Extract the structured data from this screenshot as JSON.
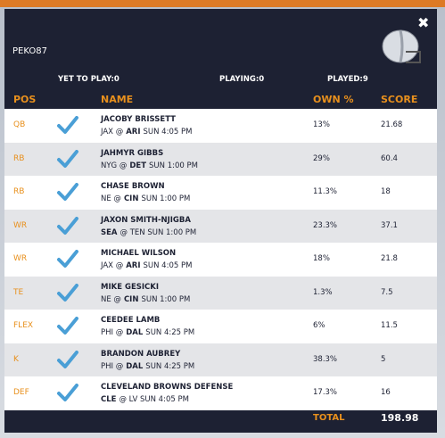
{
  "header": {
    "username": "PEKO87"
  },
  "status": [
    "YET TO PLAY:0",
    "PLAYING:0",
    "PLAYED:9"
  ],
  "table": {
    "columns": [
      "POS",
      "NAME",
      "OWN %",
      "SCORE"
    ],
    "rows": [
      {
        "pos": "QB",
        "name": "JACOBY BRISSETT",
        "game": [
          {
            "text": "JAX @"
          },
          {
            "text": "ARI",
            "bold": true
          },
          {
            "text": "SUN 4:05 PM"
          }
        ],
        "own": "13%",
        "score": 21.68
      },
      {
        "pos": "RB",
        "name": "JAHMYR GIBBS",
        "game": [
          {
            "text": "NYG @"
          },
          {
            "text": "DET",
            "bold": true
          },
          {
            "text": "SUN 1:00 PM"
          }
        ],
        "own": "29%",
        "score": 60.4
      },
      {
        "pos": "RB",
        "name": "CHASE BROWN",
        "game": [
          {
            "text": "NE @"
          },
          {
            "text": "CIN",
            "bold": true
          },
          {
            "text": "SUN 1:00 PM"
          }
        ],
        "own": "11.3%",
        "score": 18
      },
      {
        "pos": "WR",
        "name": "JAXON SMITH-NJIGBA",
        "game": [
          {
            "text": "SEA",
            "bold": true
          },
          {
            "text": "@ TEN SUN 1:00 PM"
          }
        ],
        "own": "23.3%",
        "score": 37.1
      },
      {
        "pos": "WR",
        "name": "MICHAEL WILSON",
        "game": [
          {
            "text": "JAX @"
          },
          {
            "text": "ARI",
            "bold": true
          },
          {
            "text": "SUN 4:05 PM"
          }
        ],
        "own": "18%",
        "score": 21.8
      },
      {
        "pos": "TE",
        "name": "MIKE GESICKI",
        "game": [
          {
            "text": "NE @"
          },
          {
            "text": "CIN",
            "bold": true
          },
          {
            "text": "SUN 1:00 PM"
          }
        ],
        "own": "1.3%",
        "score": 7.5
      },
      {
        "pos": "FLEX",
        "name": "CEEDEE LAMB",
        "game": [
          {
            "text": "PHI @"
          },
          {
            "text": "DAL",
            "bold": true
          },
          {
            "text": "SUN 4:25 PM"
          }
        ],
        "own": "6%",
        "score": 11.5
      },
      {
        "pos": "K",
        "name": "BRANDON AUBREY",
        "game": [
          {
            "text": "PHI @"
          },
          {
            "text": "DAL",
            "bold": true
          },
          {
            "text": "SUN 4:25 PM"
          }
        ],
        "own": "38.3%",
        "score": 5
      },
      {
        "pos": "DEF",
        "name": "CLEVELAND BROWNS DEFENSE",
        "game": [
          {
            "text": "CLE",
            "bold": true
          },
          {
            "text": "@ LV SUN 4:05 PM"
          }
        ],
        "own": "17.3%",
        "score": 16
      }
    ]
  },
  "footer": {
    "label": "TOTAL",
    "total": 198.98
  }
}
